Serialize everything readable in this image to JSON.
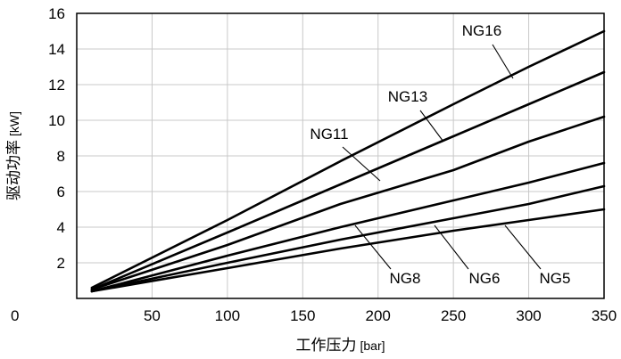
{
  "chart_data": {
    "type": "line",
    "xlabel": "工作压力",
    "xlabel_unit": "[bar]",
    "ylabel": "驱动功率",
    "ylabel_unit": "[kW]",
    "xlim": [
      0,
      350
    ],
    "ylim": [
      0,
      16
    ],
    "xticks": [
      "0",
      "50",
      "100",
      "150",
      "200",
      "250",
      "300",
      "350"
    ],
    "yticks": [
      "2",
      "4",
      "6",
      "8",
      "10",
      "12",
      "14",
      "16"
    ],
    "grid": true,
    "series": [
      {
        "name": "NG16",
        "x": [
          10,
          100,
          175,
          250,
          300,
          350
        ],
        "y": [
          0.6,
          4.4,
          7.7,
          10.9,
          13.0,
          15.0
        ]
      },
      {
        "name": "NG13",
        "x": [
          10,
          100,
          175,
          250,
          300,
          350
        ],
        "y": [
          0.5,
          3.7,
          6.4,
          9.1,
          10.9,
          12.7
        ]
      },
      {
        "name": "NG11",
        "x": [
          10,
          100,
          175,
          250,
          300,
          350
        ],
        "y": [
          0.5,
          3.0,
          5.3,
          7.2,
          8.8,
          10.2
        ]
      },
      {
        "name": "NG8",
        "x": [
          10,
          100,
          175,
          250,
          300,
          350
        ],
        "y": [
          0.4,
          2.4,
          4.0,
          5.5,
          6.5,
          7.6
        ]
      },
      {
        "name": "NG6",
        "x": [
          10,
          100,
          175,
          250,
          300,
          350
        ],
        "y": [
          0.4,
          2.0,
          3.3,
          4.5,
          5.3,
          6.3
        ]
      },
      {
        "name": "NG5",
        "x": [
          10,
          100,
          175,
          250,
          300,
          350
        ],
        "y": [
          0.4,
          1.7,
          2.8,
          3.8,
          4.4,
          5.0
        ]
      }
    ]
  }
}
